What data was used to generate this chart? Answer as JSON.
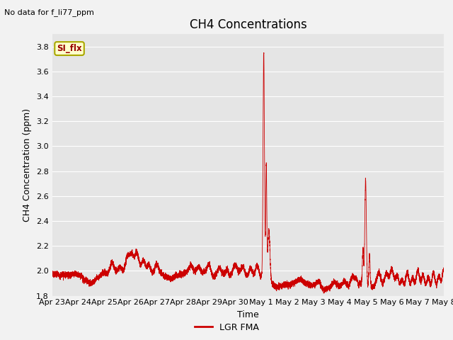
{
  "title": "CH4 Concentrations",
  "xlabel": "Time",
  "ylabel": "CH4 Concentration (ppm)",
  "top_left_text": "No data for f_li77_ppm",
  "legend_label": "LGR FMA",
  "box_label": "SI_flx",
  "ylim": [
    1.8,
    3.9
  ],
  "yticks": [
    1.8,
    2.0,
    2.2,
    2.4,
    2.6,
    2.8,
    3.0,
    3.2,
    3.4,
    3.6,
    3.8
  ],
  "x_tick_labels": [
    "Apr 23",
    "Apr 24",
    "Apr 25",
    "Apr 26",
    "Apr 27",
    "Apr 28",
    "Apr 29",
    "Apr 30",
    "May 1",
    "May 2",
    "May 3",
    "May 4",
    "May 5",
    "May 6",
    "May 7",
    "May 8"
  ],
  "line_color": "#cc0000",
  "background_color": "#e5e5e5",
  "fig_background": "#f2f2f2",
  "grid_color": "#ffffff",
  "box_fill": "#ffffcc",
  "box_edge": "#aaa800",
  "box_text_color": "#990000",
  "title_fontsize": 12,
  "label_fontsize": 9,
  "tick_fontsize": 8
}
